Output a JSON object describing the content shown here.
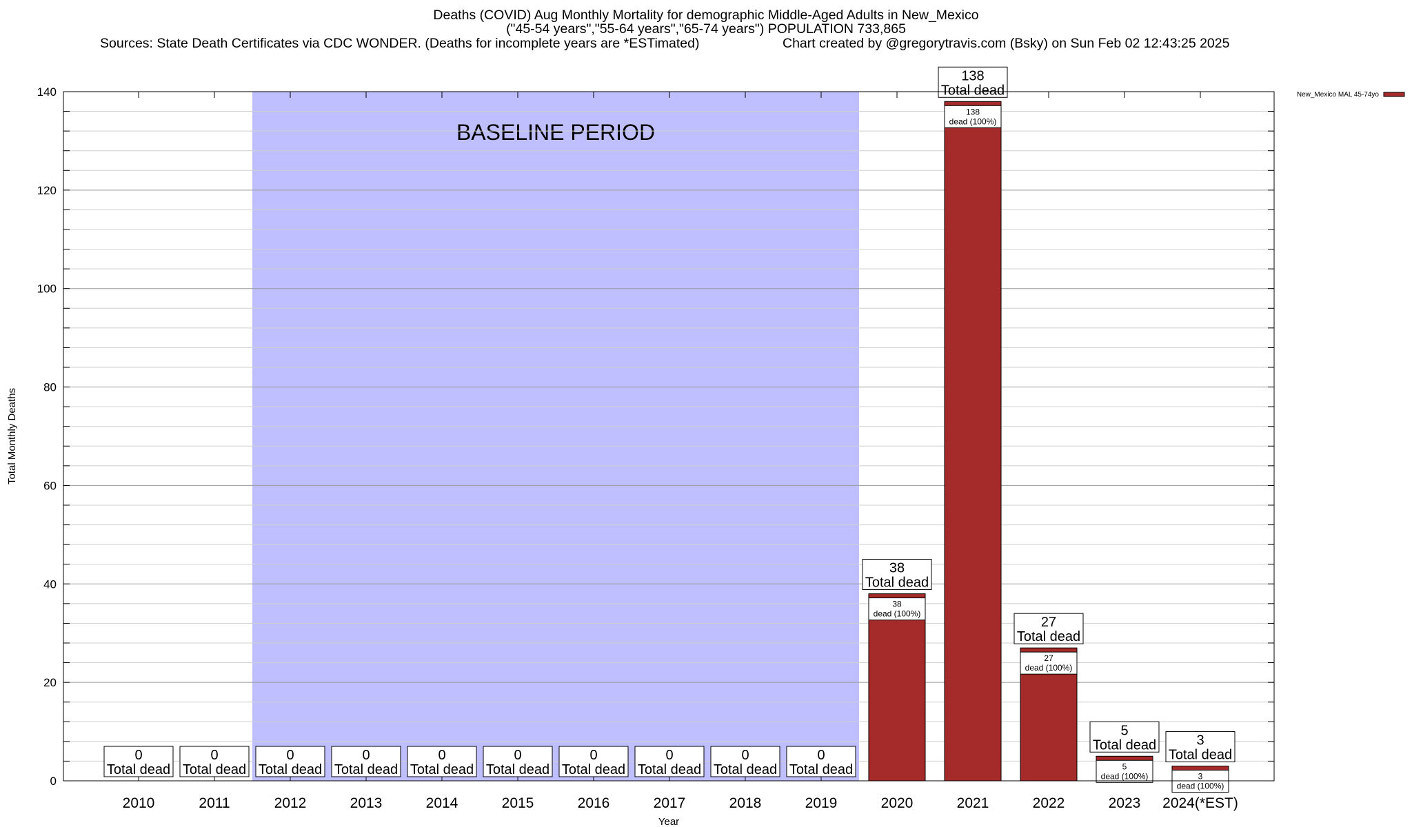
{
  "chart_data": {
    "type": "bar",
    "title_lines": [
      "Deaths (COVID) Aug Monthly Mortality for demographic Middle-Aged Adults in New_Mexico",
      "(\"45-54 years\",\"55-64 years\",\"65-74 years\") POPULATION 733,865"
    ],
    "sources": "Sources: State Death Certificates via CDC WONDER. (Deaths for incomplete years are *ESTimated)",
    "credit": "Chart created by @gregorytravis.com (Bsky) on Sun Feb 02 12:43:25 2025",
    "xlabel": "Year",
    "ylabel": "Total Monthly Deaths",
    "ylim": [
      0,
      140
    ],
    "yticks": [
      0,
      20,
      40,
      60,
      80,
      100,
      120,
      140
    ],
    "minor_step": 4,
    "categories": [
      "2010",
      "2011",
      "2012",
      "2013",
      "2014",
      "2015",
      "2016",
      "2017",
      "2018",
      "2019",
      "2020",
      "2021",
      "2022",
      "2023",
      "2024(*EST)"
    ],
    "series": [
      {
        "name": "New_Mexico MAL 45-74yo",
        "color": "#a52a2a",
        "values": [
          0,
          0,
          0,
          0,
          0,
          0,
          0,
          0,
          0,
          0,
          38,
          138,
          27,
          5,
          3
        ]
      }
    ],
    "total_label": "Total dead",
    "segment_label_suffix": "dead (100%)",
    "baseline": {
      "label": "BASELINE PERIOD",
      "from": "2012",
      "to": "2019",
      "color": "#bfbfff"
    },
    "grid": true,
    "legend_position": "top-right"
  }
}
